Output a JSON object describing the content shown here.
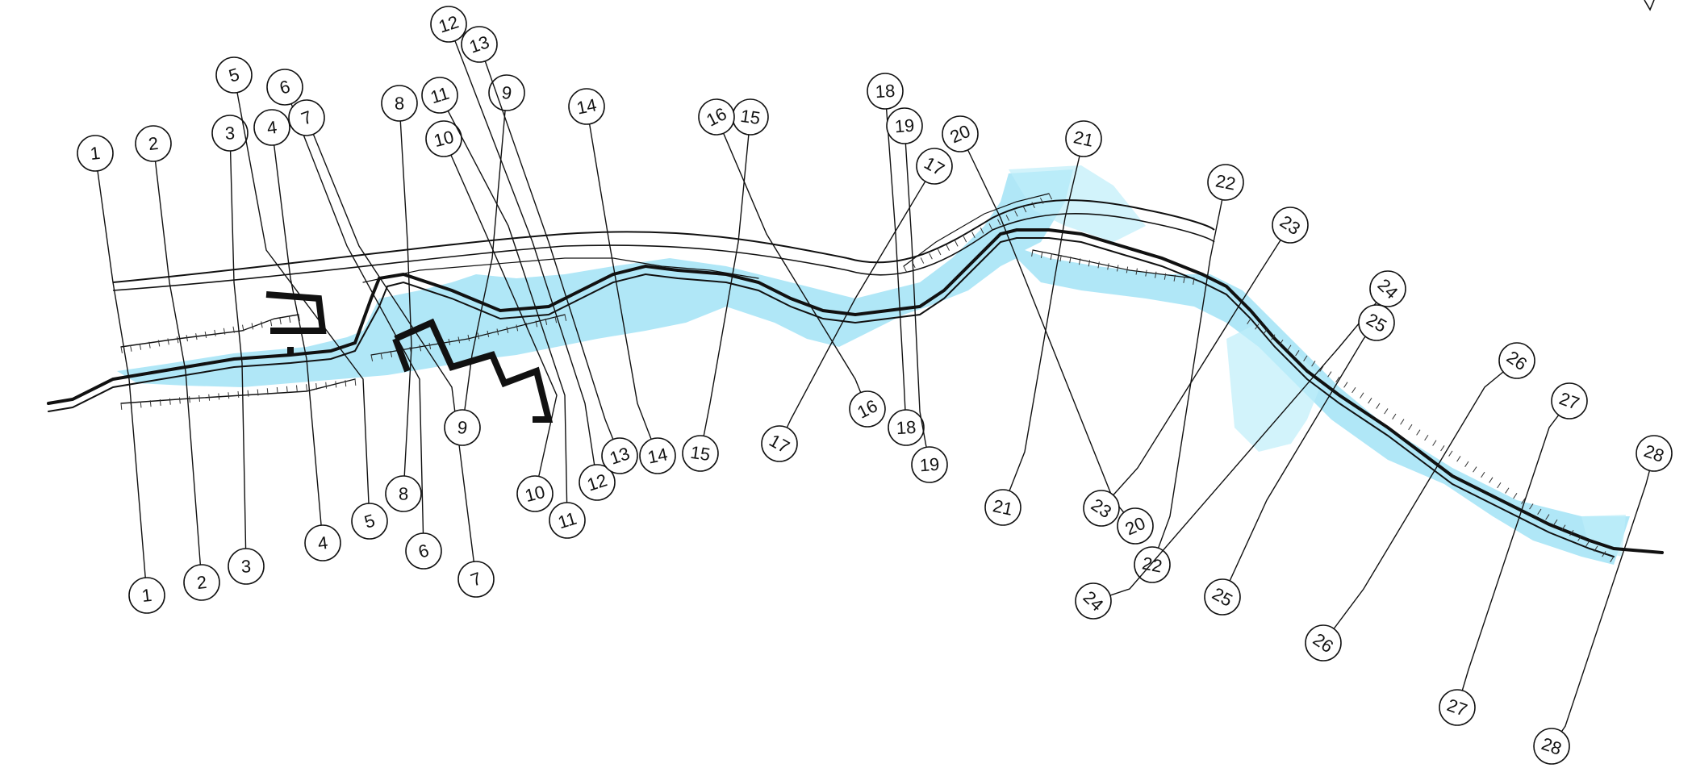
{
  "drawing": {
    "section_labels": [
      "1",
      "2",
      "3",
      "4",
      "5",
      "6",
      "7",
      "8",
      "9",
      "10",
      "11",
      "12",
      "13",
      "14",
      "15",
      "16",
      "17",
      "18",
      "19",
      "20",
      "21",
      "22",
      "23",
      "24",
      "25",
      "26",
      "27",
      "28"
    ],
    "colors": {
      "water": "#6fd3f0",
      "water_light": "#bfeefa",
      "linework": "#111111",
      "background": "#ffffff"
    }
  }
}
